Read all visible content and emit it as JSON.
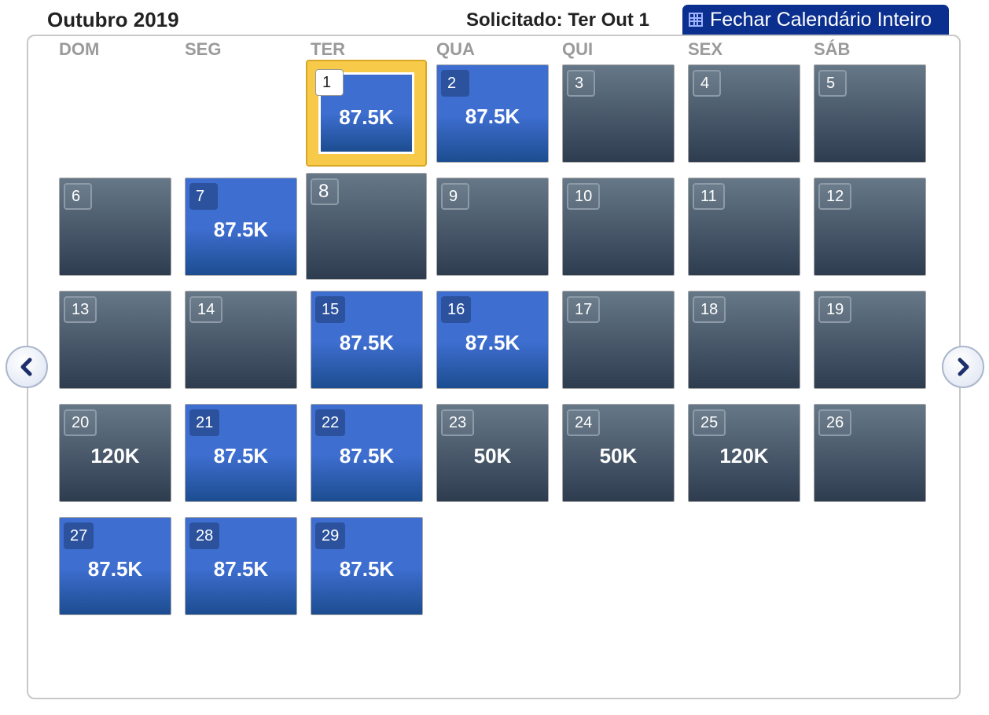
{
  "header": {
    "month_title": "Outubro 2019",
    "requested": "Solicitado: Ter Out 1",
    "close_button": "Fechar Calendário Inteiro"
  },
  "weekdays": [
    "DOM",
    "SEG",
    "TER",
    "QUA",
    "QUI",
    "SEX",
    "SÁB"
  ],
  "days": [
    {
      "day": "1",
      "price": "87.5K",
      "state": "selected"
    },
    {
      "day": "2",
      "price": "87.5K",
      "state": "available"
    },
    {
      "day": "3",
      "price": "",
      "state": "unavailable"
    },
    {
      "day": "4",
      "price": "",
      "state": "unavailable"
    },
    {
      "day": "5",
      "price": "",
      "state": "unavailable"
    },
    {
      "day": "6",
      "price": "",
      "state": "unavailable"
    },
    {
      "day": "7",
      "price": "87.5K",
      "state": "available"
    },
    {
      "day": "8",
      "price": "",
      "state": "unavailable"
    },
    {
      "day": "9",
      "price": "",
      "state": "unavailable"
    },
    {
      "day": "10",
      "price": "",
      "state": "unavailable"
    },
    {
      "day": "11",
      "price": "",
      "state": "unavailable"
    },
    {
      "day": "12",
      "price": "",
      "state": "unavailable"
    },
    {
      "day": "13",
      "price": "",
      "state": "unavailable"
    },
    {
      "day": "14",
      "price": "",
      "state": "unavailable"
    },
    {
      "day": "15",
      "price": "87.5K",
      "state": "available"
    },
    {
      "day": "16",
      "price": "87.5K",
      "state": "available"
    },
    {
      "day": "17",
      "price": "",
      "state": "unavailable"
    },
    {
      "day": "18",
      "price": "",
      "state": "unavailable"
    },
    {
      "day": "19",
      "price": "",
      "state": "unavailable"
    },
    {
      "day": "20",
      "price": "120K",
      "state": "priced"
    },
    {
      "day": "21",
      "price": "87.5K",
      "state": "available"
    },
    {
      "day": "22",
      "price": "87.5K",
      "state": "available"
    },
    {
      "day": "23",
      "price": "50K",
      "state": "priced"
    },
    {
      "day": "24",
      "price": "50K",
      "state": "priced"
    },
    {
      "day": "25",
      "price": "120K",
      "state": "priced"
    },
    {
      "day": "26",
      "price": "",
      "state": "unavailable"
    },
    {
      "day": "27",
      "price": "87.5K",
      "state": "available"
    },
    {
      "day": "28",
      "price": "87.5K",
      "state": "available"
    },
    {
      "day": "29",
      "price": "87.5K",
      "state": "available"
    }
  ],
  "icons": {
    "prev": "chevron-left-icon",
    "next": "chevron-right-icon",
    "close": "grid-icon"
  },
  "colors": {
    "selected_border": "#f7ca4a",
    "available_cell": "#3e6ed0",
    "unavailable_cell": "#3d4b5e",
    "header_button": "#0b2f8f"
  }
}
